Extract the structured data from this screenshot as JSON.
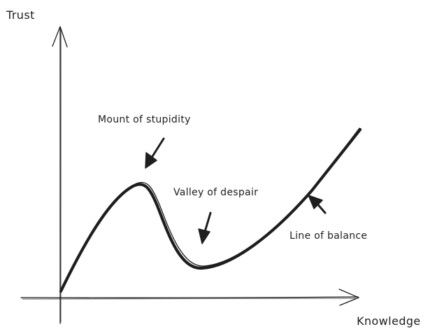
{
  "axes": {
    "y_label": "Trust",
    "x_label": "Knowledge"
  },
  "annotations": {
    "peak": "Mount of stupidity",
    "valley": "Valley of despair",
    "balance": "Line of balance"
  },
  "colors": {
    "ink": "#1e1e1e",
    "background": "#ffffff"
  }
}
